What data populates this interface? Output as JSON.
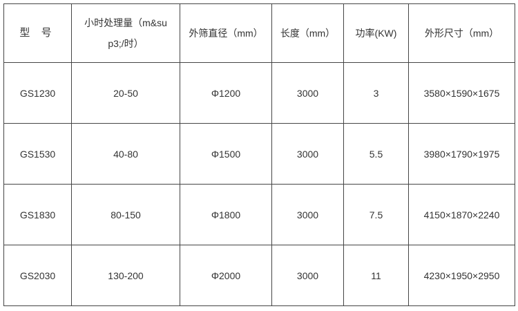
{
  "table": {
    "headers": [
      "型 号",
      "小时处理量（m&sup3;/时）",
      "外筛直径（mm）",
      "长度（mm）",
      "功率(KW)",
      "外形尺寸（mm）"
    ],
    "header_line1": "小时处理量（m&su",
    "header_line2": "p3;/时）",
    "rows": [
      [
        "GS1230",
        "20-50",
        "Φ1200",
        "3000",
        "3",
        "3580×1590×1675"
      ],
      [
        "GS1530",
        "40-80",
        "Φ1500",
        "3000",
        "5.5",
        "3980×1790×1975"
      ],
      [
        "GS1830",
        "80-150",
        "Φ1800",
        "3000",
        "7.5",
        "4150×1870×2240"
      ],
      [
        "GS2030",
        "130-200",
        "Φ2000",
        "3000",
        "11",
        "4230×1950×2950"
      ]
    ]
  }
}
